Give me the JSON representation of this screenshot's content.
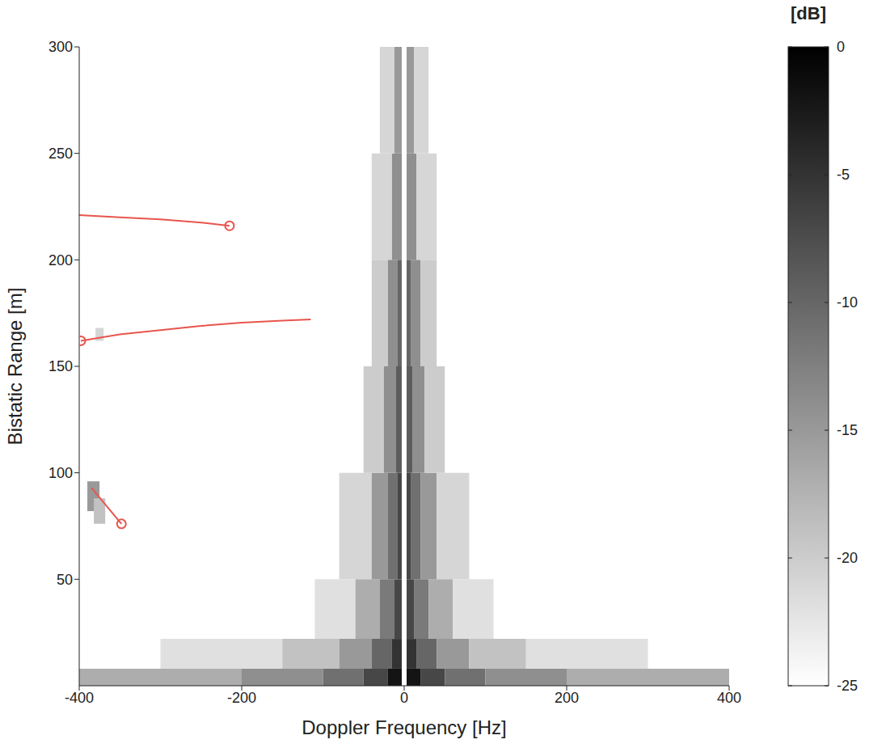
{
  "chart_data": {
    "type": "heatmap",
    "x_label": "Doppler Frequency [Hz]",
    "y_label": "Bistatic Range [m]",
    "xlim": [
      -400,
      400
    ],
    "xticks": [
      -400,
      -200,
      0,
      200,
      400
    ],
    "ylim": [
      0,
      300
    ],
    "yticks": [
      50,
      100,
      150,
      200,
      250,
      300
    ],
    "cells": [
      [
        -400,
        -200,
        0,
        8,
        -17
      ],
      [
        -200,
        -100,
        0,
        8,
        -14
      ],
      [
        -100,
        -50,
        0,
        8,
        -11
      ],
      [
        -50,
        -20,
        0,
        8,
        -7
      ],
      [
        -20,
        -3,
        0,
        8,
        -2
      ],
      [
        3,
        20,
        0,
        8,
        -2
      ],
      [
        20,
        50,
        0,
        8,
        -7
      ],
      [
        50,
        100,
        0,
        8,
        -11
      ],
      [
        100,
        200,
        0,
        8,
        -14
      ],
      [
        200,
        400,
        0,
        8,
        -17
      ],
      [
        -300,
        -150,
        8,
        22,
        -22
      ],
      [
        -150,
        -80,
        8,
        22,
        -19
      ],
      [
        -80,
        -40,
        8,
        22,
        -15
      ],
      [
        -40,
        -15,
        8,
        22,
        -10
      ],
      [
        -15,
        -3,
        8,
        22,
        -5
      ],
      [
        3,
        15,
        8,
        22,
        -5
      ],
      [
        15,
        40,
        8,
        22,
        -10
      ],
      [
        40,
        80,
        8,
        22,
        -15
      ],
      [
        80,
        150,
        8,
        22,
        -19
      ],
      [
        150,
        300,
        8,
        22,
        -22
      ],
      [
        -110,
        -60,
        22,
        50,
        -22
      ],
      [
        -60,
        -30,
        22,
        50,
        -17
      ],
      [
        -30,
        -12,
        22,
        50,
        -12
      ],
      [
        -12,
        -3,
        22,
        50,
        -7
      ],
      [
        3,
        12,
        22,
        50,
        -7
      ],
      [
        12,
        30,
        22,
        50,
        -12
      ],
      [
        30,
        60,
        22,
        50,
        -17
      ],
      [
        60,
        110,
        22,
        50,
        -22
      ],
      [
        -80,
        -40,
        50,
        100,
        -21
      ],
      [
        -40,
        -20,
        50,
        100,
        -15
      ],
      [
        -20,
        -8,
        50,
        100,
        -11
      ],
      [
        -8,
        -3,
        50,
        100,
        -7
      ],
      [
        3,
        8,
        50,
        100,
        -7
      ],
      [
        8,
        20,
        50,
        100,
        -11
      ],
      [
        20,
        40,
        50,
        100,
        -15
      ],
      [
        40,
        80,
        50,
        100,
        -21
      ],
      [
        -50,
        -25,
        100,
        150,
        -20
      ],
      [
        -25,
        -10,
        100,
        150,
        -14
      ],
      [
        -10,
        -3,
        100,
        150,
        -9
      ],
      [
        3,
        10,
        100,
        150,
        -9
      ],
      [
        10,
        25,
        100,
        150,
        -14
      ],
      [
        25,
        50,
        100,
        150,
        -20
      ],
      [
        -40,
        -20,
        150,
        200,
        -20
      ],
      [
        -20,
        -8,
        150,
        200,
        -14
      ],
      [
        -8,
        -3,
        150,
        200,
        -10
      ],
      [
        3,
        8,
        150,
        200,
        -10
      ],
      [
        8,
        20,
        150,
        200,
        -14
      ],
      [
        20,
        40,
        150,
        200,
        -20
      ],
      [
        -40,
        -15,
        200,
        250,
        -21
      ],
      [
        -15,
        -3,
        200,
        250,
        -14
      ],
      [
        3,
        15,
        200,
        250,
        -14
      ],
      [
        15,
        40,
        200,
        250,
        -21
      ],
      [
        -30,
        -12,
        250,
        300,
        -21
      ],
      [
        -12,
        -3,
        250,
        300,
        -15
      ],
      [
        3,
        12,
        250,
        300,
        -15
      ],
      [
        12,
        30,
        250,
        300,
        -21
      ],
      [
        -390,
        -375,
        82,
        96,
        -15
      ],
      [
        -382,
        -368,
        76,
        88,
        -19
      ],
      [
        -380,
        -370,
        162,
        168,
        -21
      ]
    ],
    "colorbar": {
      "label": "[dB]",
      "range": [
        -25,
        0
      ],
      "ticks": [
        0,
        -5,
        -10,
        -15,
        -20,
        -25
      ]
    },
    "series": [
      {
        "type": "line",
        "color": "#e8554d",
        "marker": "circle",
        "x": [
          -400,
          -350,
          -300,
          -250,
          -215
        ],
        "values": [
          221,
          220,
          219,
          217.5,
          216
        ],
        "marker_point": [
          -215,
          216
        ]
      },
      {
        "type": "line",
        "color": "#e8554d",
        "marker": "circle",
        "x": [
          -398,
          -350,
          -300,
          -250,
          -200,
          -150,
          -115
        ],
        "values": [
          162,
          165,
          167,
          169,
          170.5,
          171.5,
          172
        ],
        "marker_point": [
          -398,
          162
        ]
      },
      {
        "type": "line",
        "color": "#e8554d",
        "marker": "circle",
        "x": [
          -385,
          -348
        ],
        "values": [
          93,
          76
        ],
        "marker_point": [
          -348,
          76
        ]
      }
    ]
  }
}
